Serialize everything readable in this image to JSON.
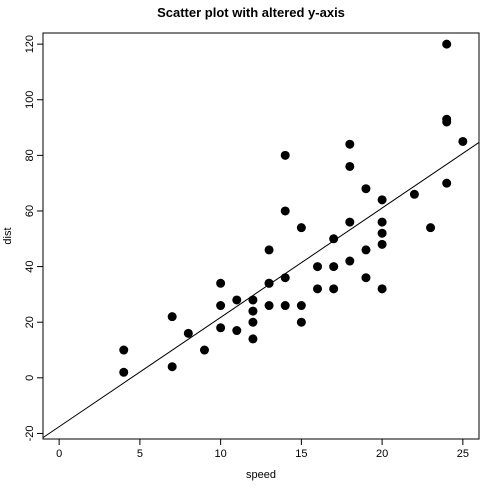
{
  "chart_data": {
    "type": "scatter",
    "title": "Scatter plot with altered y-axis",
    "xlabel": "speed",
    "ylabel": "dist",
    "xlim": [
      -1,
      26
    ],
    "ylim": [
      -22,
      124
    ],
    "xticks": [
      0,
      5,
      10,
      15,
      20,
      25
    ],
    "yticks": [
      -20,
      0,
      20,
      40,
      60,
      80,
      100,
      120
    ],
    "grid": false,
    "legend": "none",
    "point_color": "#000000",
    "regression_line": {
      "intercept": -17.579,
      "slope": 3.932
    },
    "points": [
      {
        "x": 4,
        "y": 2
      },
      {
        "x": 4,
        "y": 10
      },
      {
        "x": 7,
        "y": 4
      },
      {
        "x": 7,
        "y": 22
      },
      {
        "x": 8,
        "y": 16
      },
      {
        "x": 9,
        "y": 10
      },
      {
        "x": 10,
        "y": 18
      },
      {
        "x": 10,
        "y": 26
      },
      {
        "x": 10,
        "y": 34
      },
      {
        "x": 11,
        "y": 17
      },
      {
        "x": 11,
        "y": 28
      },
      {
        "x": 12,
        "y": 14
      },
      {
        "x": 12,
        "y": 20
      },
      {
        "x": 12,
        "y": 24
      },
      {
        "x": 12,
        "y": 28
      },
      {
        "x": 13,
        "y": 26
      },
      {
        "x": 13,
        "y": 34
      },
      {
        "x": 13,
        "y": 34
      },
      {
        "x": 13,
        "y": 46
      },
      {
        "x": 14,
        "y": 26
      },
      {
        "x": 14,
        "y": 36
      },
      {
        "x": 14,
        "y": 60
      },
      {
        "x": 14,
        "y": 80
      },
      {
        "x": 15,
        "y": 20
      },
      {
        "x": 15,
        "y": 26
      },
      {
        "x": 15,
        "y": 54
      },
      {
        "x": 16,
        "y": 32
      },
      {
        "x": 16,
        "y": 40
      },
      {
        "x": 17,
        "y": 32
      },
      {
        "x": 17,
        "y": 40
      },
      {
        "x": 17,
        "y": 50
      },
      {
        "x": 18,
        "y": 42
      },
      {
        "x": 18,
        "y": 56
      },
      {
        "x": 18,
        "y": 76
      },
      {
        "x": 18,
        "y": 84
      },
      {
        "x": 19,
        "y": 36
      },
      {
        "x": 19,
        "y": 46
      },
      {
        "x": 19,
        "y": 68
      },
      {
        "x": 20,
        "y": 32
      },
      {
        "x": 20,
        "y": 48
      },
      {
        "x": 20,
        "y": 52
      },
      {
        "x": 20,
        "y": 56
      },
      {
        "x": 20,
        "y": 64
      },
      {
        "x": 22,
        "y": 66
      },
      {
        "x": 23,
        "y": 54
      },
      {
        "x": 24,
        "y": 70
      },
      {
        "x": 24,
        "y": 92
      },
      {
        "x": 24,
        "y": 93
      },
      {
        "x": 24,
        "y": 120
      },
      {
        "x": 25,
        "y": 85
      }
    ]
  }
}
